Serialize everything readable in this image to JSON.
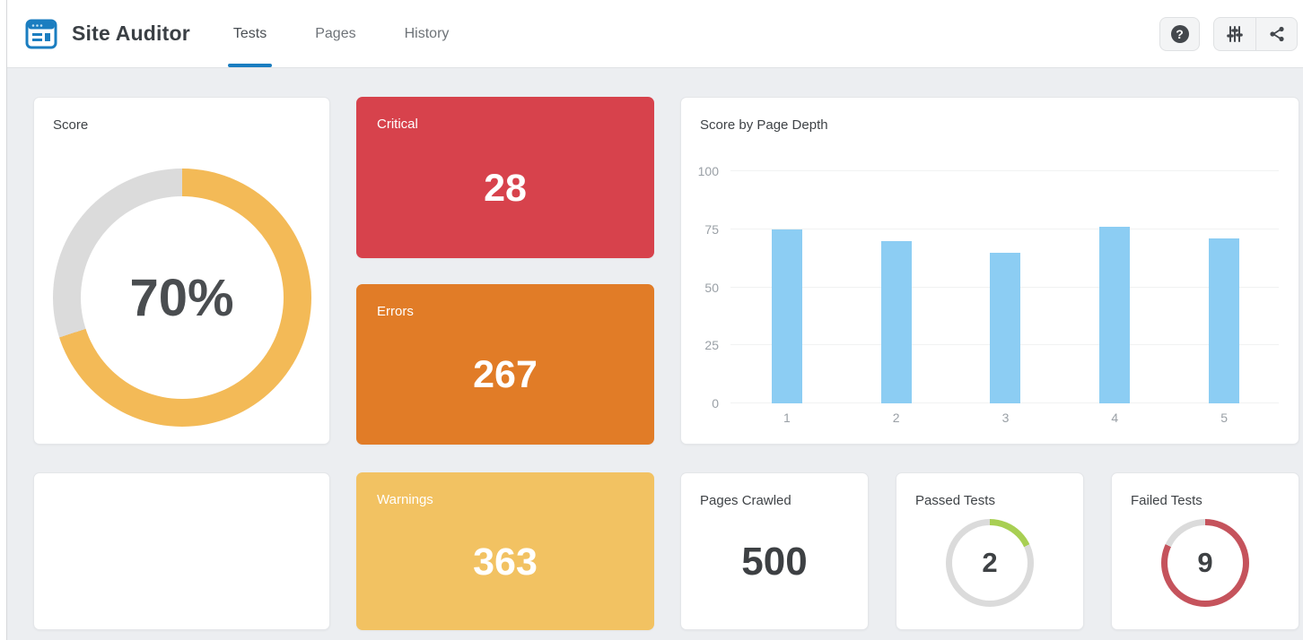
{
  "header": {
    "app_title": "Site Auditor",
    "tabs": [
      {
        "label": "Tests",
        "active": true
      },
      {
        "label": "Pages",
        "active": false
      },
      {
        "label": "History",
        "active": false
      }
    ],
    "actions": {
      "help_icon": "question-circle-icon",
      "filter_icon": "sliders-icon",
      "share_icon": "share-nodes-icon"
    }
  },
  "colors": {
    "accent_blue": "#1a7dc0",
    "critical_red": "#d7424c",
    "errors_orange": "#e17c27",
    "warnings_yellow": "#f2c262",
    "score_arc": "#f3ba57",
    "donut_track": "#dbdbdb",
    "bar_blue": "#8ccdf3",
    "passed_green": "#a8cf53",
    "failed_red": "#c5535c"
  },
  "cards": {
    "score": {
      "label": "Score",
      "value": "70%",
      "percent": 70
    },
    "critical": {
      "label": "Critical",
      "value": "28"
    },
    "errors": {
      "label": "Errors",
      "value": "267"
    },
    "warnings": {
      "label": "Warnings",
      "value": "363"
    },
    "pages_crawled": {
      "label": "Pages Crawled",
      "value": "500"
    },
    "passed_tests": {
      "label": "Passed Tests",
      "value": "2",
      "percent": 18
    },
    "failed_tests": {
      "label": "Failed Tests",
      "value": "9",
      "percent": 82
    }
  },
  "chart_data": {
    "type": "bar",
    "title": "Score by Page Depth",
    "categories": [
      "1",
      "2",
      "3",
      "4",
      "5"
    ],
    "values": [
      75,
      70,
      65,
      76,
      71
    ],
    "y_ticks": [
      0,
      25,
      50,
      75,
      100
    ],
    "ylim": [
      0,
      100
    ],
    "xlabel": "",
    "ylabel": "",
    "grid": true,
    "legend": "none",
    "bar_color": "#8ccdf3"
  }
}
